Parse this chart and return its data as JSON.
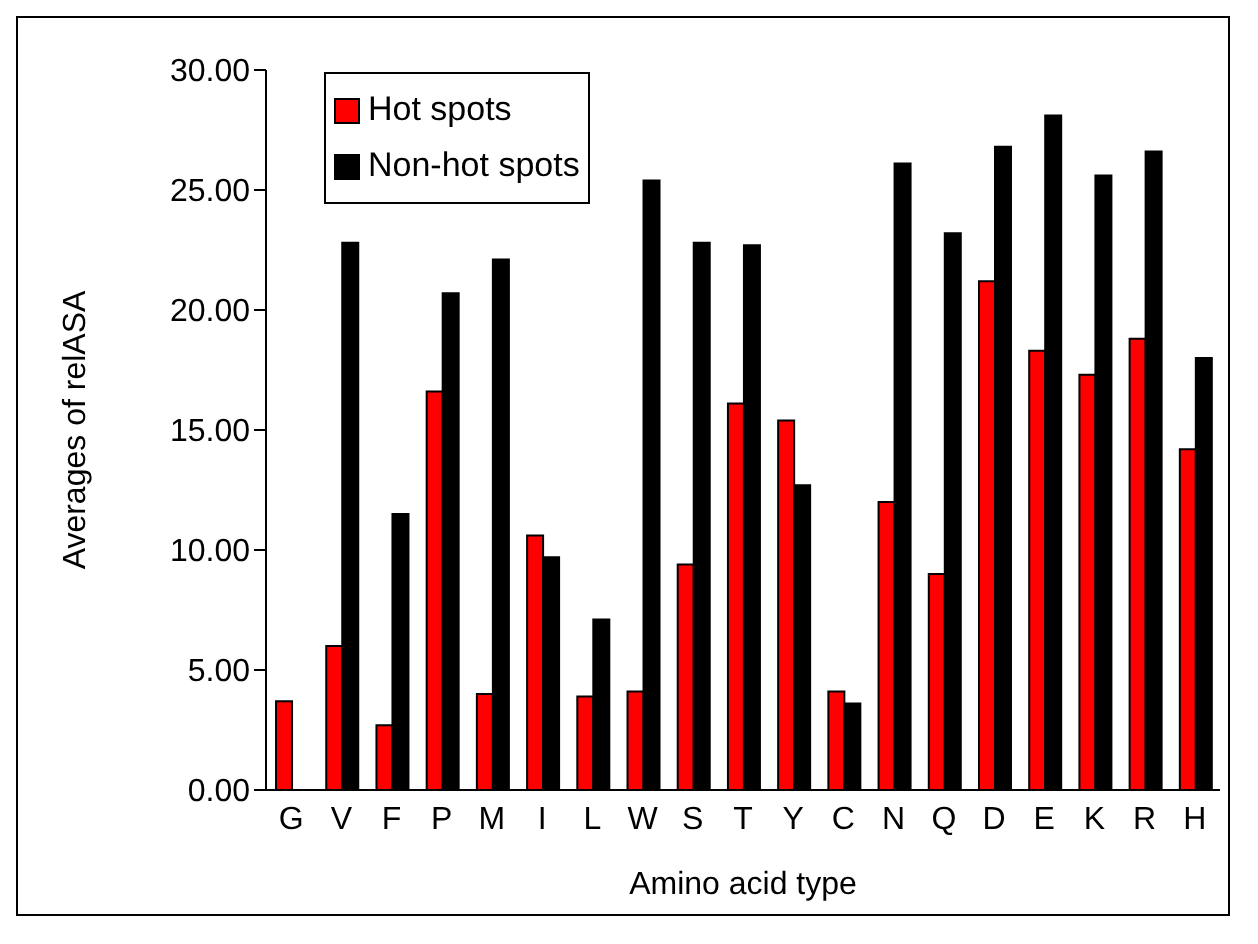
{
  "chart_data": {
    "type": "bar",
    "xlabel": "Amino acid type",
    "ylabel": "Averages of relASA",
    "categories": [
      "G",
      "V",
      "F",
      "P",
      "M",
      "I",
      "L",
      "W",
      "S",
      "T",
      "Y",
      "C",
      "N",
      "Q",
      "D",
      "E",
      "K",
      "R",
      "H"
    ],
    "series": [
      {
        "name": "Hot spots",
        "color": "#ff0000",
        "values": [
          3.7,
          6.0,
          2.7,
          16.6,
          4.0,
          10.6,
          3.9,
          4.1,
          9.4,
          16.1,
          15.4,
          4.1,
          12.0,
          9.0,
          21.2,
          18.3,
          17.3,
          18.8,
          14.2
        ]
      },
      {
        "name": "Non-hot spots",
        "color": "#000000",
        "values": [
          0,
          22.8,
          11.5,
          20.7,
          22.1,
          9.7,
          7.1,
          25.4,
          22.8,
          22.7,
          12.7,
          3.6,
          26.1,
          23.2,
          26.8,
          28.1,
          25.6,
          26.6,
          18.0
        ]
      }
    ],
    "ylim": [
      0,
      30
    ],
    "yticks": [
      {
        "value": 0,
        "label": "0.00"
      },
      {
        "value": 5,
        "label": "5.00"
      },
      {
        "value": 10,
        "label": "10.00"
      },
      {
        "value": 15,
        "label": "15.00"
      },
      {
        "value": 20,
        "label": "20.00"
      },
      {
        "value": 25,
        "label": "25.00"
      },
      {
        "value": 30,
        "label": "30.00"
      }
    ],
    "legend": "top left",
    "grid": false
  }
}
